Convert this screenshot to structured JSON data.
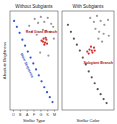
{
  "chart_data": [
    {
      "type": "scatter",
      "title": "Without Subgiants",
      "x_label": "Stellar Type",
      "y_label": "Absolute Brightness",
      "xlim": [
        0,
        7
      ],
      "ylim": [
        0,
        10
      ],
      "xticks": [
        {
          "value": 0.5,
          "label": "O"
        },
        {
          "value": 1.5,
          "label": "B"
        },
        {
          "value": 2.5,
          "label": "A"
        },
        {
          "value": 3.5,
          "label": "F"
        },
        {
          "value": 4.5,
          "label": "G"
        },
        {
          "value": 5.5,
          "label": "K"
        },
        {
          "value": 6.5,
          "label": "M"
        }
      ],
      "tick_labels": "x",
      "grid": false,
      "annotations": [
        {
          "text": "Red Giant Branch",
          "color": "#b01818"
        },
        {
          "text": "Main Sequence",
          "color": "#3355cc"
        }
      ],
      "series": [
        {
          "color": "#3355cc",
          "marker": "circle",
          "x": [
            0.6,
            1.0,
            1.4,
            1.8,
            2.2,
            2.6,
            3.0,
            3.4,
            3.8,
            4.2,
            4.6,
            5.0,
            5.4,
            5.8,
            6.2
          ],
          "values": [
            9.0,
            8.4,
            7.8,
            7.1,
            6.5,
            5.9,
            5.3,
            4.7,
            4.1,
            3.5,
            2.9,
            2.3,
            1.8,
            1.3,
            0.8
          ]
        },
        {
          "color": "#999999",
          "marker": "circle",
          "x": [
            3.6,
            4.1,
            4.5,
            5.0,
            5.5,
            6.0,
            4.8,
            5.3,
            5.9,
            6.3,
            3.9,
            6.4,
            2.8,
            3.2,
            4.4,
            5.6
          ],
          "values": [
            9.2,
            8.8,
            9.4,
            8.9,
            9.3,
            8.7,
            8.1,
            8.0,
            7.9,
            8.4,
            7.6,
            7.2,
            8.5,
            7.9,
            5.8,
            5.5
          ]
        },
        {
          "color": "#d03030",
          "marker": "circle",
          "x": [
            4.6,
            4.9,
            5.1,
            5.3,
            5.0,
            4.8,
            5.4,
            5.2
          ],
          "values": [
            7.0,
            7.2,
            6.8,
            7.1,
            6.6,
            6.9,
            6.7,
            7.3
          ]
        }
      ]
    },
    {
      "type": "scatter",
      "title": "With Subgiants",
      "x_label": "Stellar Color",
      "xlim": [
        0,
        7
      ],
      "ylim": [
        0,
        10
      ],
      "tick_labels": false,
      "grid": false,
      "annotations": [
        {
          "text": "Subgiant Branch",
          "color": "#b01818"
        }
      ],
      "series": [
        {
          "color": "#555555",
          "marker": "circle",
          "x": [
            0.8,
            1.2,
            1.6,
            2.0,
            2.4,
            2.8,
            3.2,
            3.6,
            4.0,
            4.4,
            4.8,
            5.2,
            5.6,
            6.0
          ],
          "values": [
            8.6,
            7.9,
            7.2,
            6.6,
            6.0,
            5.3,
            4.6,
            3.9,
            3.3,
            2.7,
            2.1,
            1.6,
            1.1,
            0.7
          ]
        },
        {
          "color": "#999999",
          "marker": "circle",
          "x": [
            3.8,
            4.3,
            4.7,
            5.2,
            5.7,
            6.2,
            4.5,
            5.0,
            5.6,
            6.3,
            4.9,
            5.4
          ],
          "values": [
            9.3,
            8.9,
            9.5,
            9.0,
            8.6,
            9.1,
            8.2,
            7.9,
            7.7,
            7.5,
            7.2,
            6.9
          ]
        },
        {
          "color": "#d03030",
          "marker": "circle",
          "x": [
            3.4,
            3.7,
            4.0,
            4.3,
            3.6,
            4.1,
            4.4,
            3.9
          ],
          "values": [
            5.9,
            6.1,
            6.0,
            6.3,
            5.7,
            5.8,
            6.0,
            6.4
          ]
        }
      ]
    }
  ]
}
